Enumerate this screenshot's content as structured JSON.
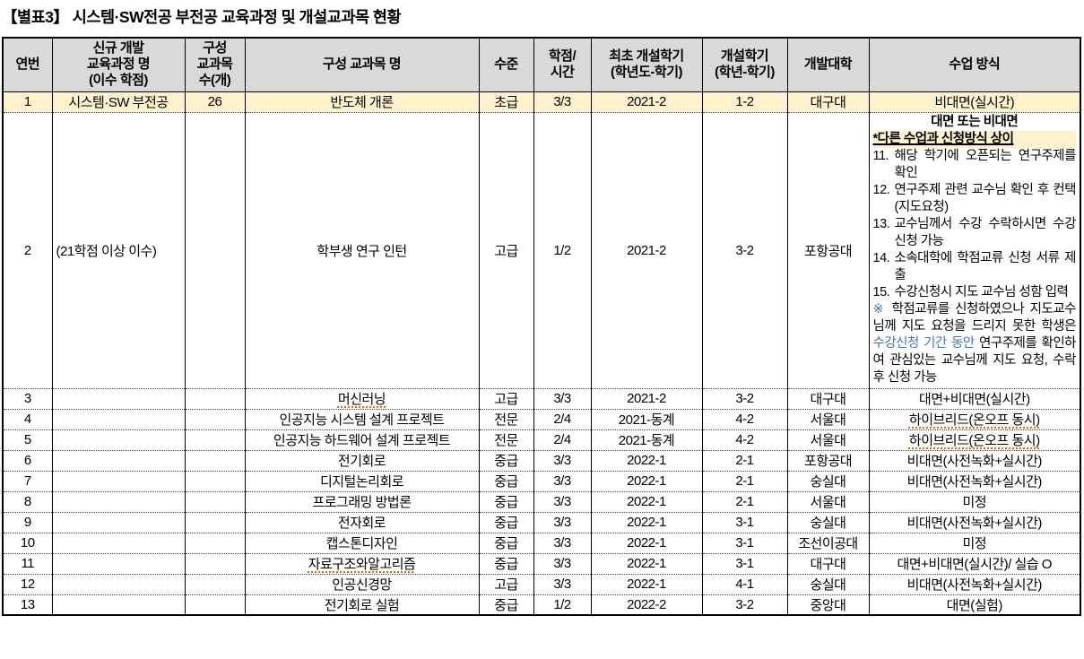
{
  "title": "【별표3】 시스템·SW전공 부전공 교육과정 및 개설교과목 현황",
  "colors": {
    "header_bg": "#d9d9d9",
    "highlight_bg": "#fdf2cc",
    "blue_text": "#4472c4",
    "squiggle": "#e36c0a"
  },
  "table": {
    "headers": {
      "no": "연번",
      "program": "신규 개발\n교육과정 명\n(이수 학점)",
      "count": "구성\n교과목\n수(개)",
      "course": "구성 교과목 명",
      "level": "수준",
      "credit": "학점/\n시간",
      "first_term": "최초 개설학기\n(학년도-학기)",
      "open_term": "개설학기\n(학년-학기)",
      "univ": "개발대학",
      "method": "수업 방식"
    },
    "rows": [
      {
        "no": "1",
        "program": "시스템·SW 부전공",
        "count": "26",
        "course": "반도체 개론",
        "level": "초급",
        "credit": "3/3",
        "first_term": "2021-2",
        "open_term": "1-2",
        "univ": "대구대",
        "method": "비대면(실시간)",
        "highlight": true
      },
      {
        "no": "2",
        "program": "(21학점 이상 이수)",
        "program_left": true,
        "count": "",
        "course": "학부생 연구 인턴",
        "level": "고급",
        "credit": "1/2",
        "first_term": "2021-2",
        "open_term": "3-2",
        "univ": "포항공대",
        "method": "",
        "method_special": true
      },
      {
        "no": "3",
        "program": "",
        "count": "",
        "course": "머신러닝",
        "level": "고급",
        "credit": "3/3",
        "first_term": "2021-2",
        "open_term": "3-2",
        "univ": "대구대",
        "method": "대면+비대면(실시간)",
        "squiggle": [
          "course"
        ]
      },
      {
        "no": "4",
        "program": "",
        "count": "",
        "course": "인공지능 시스템 설계 프로젝트",
        "level": "전문",
        "credit": "2/4",
        "first_term": "2021-동계",
        "open_term": "4-2",
        "univ": "서울대",
        "method": "하이브리드(온오프 동시)",
        "squiggle": [
          "method"
        ]
      },
      {
        "no": "5",
        "program": "",
        "count": "",
        "course": "인공지능 하드웨어 설계 프로젝트",
        "level": "전문",
        "credit": "2/4",
        "first_term": "2021-동계",
        "open_term": "4-2",
        "univ": "서울대",
        "method": "하이브리드(온오프 동시)",
        "squiggle": [
          "method"
        ]
      },
      {
        "no": "6",
        "program": "",
        "count": "",
        "course": "전기회로",
        "level": "중급",
        "credit": "3/3",
        "first_term": "2022-1",
        "open_term": "2-1",
        "univ": "포항공대",
        "method": "비대면(사전녹화+실시간)"
      },
      {
        "no": "7",
        "program": "",
        "count": "",
        "course": "디지털논리회로",
        "level": "중급",
        "credit": "3/3",
        "first_term": "2022-1",
        "open_term": "2-1",
        "univ": "숭실대",
        "method": "비대면(사전녹화+실시간)"
      },
      {
        "no": "8",
        "program": "",
        "count": "",
        "course": "프로그래밍 방법론",
        "level": "중급",
        "credit": "3/3",
        "first_term": "2022-1",
        "open_term": "2-1",
        "univ": "서울대",
        "method": "미정"
      },
      {
        "no": "9",
        "program": "",
        "count": "",
        "course": "전자회로",
        "level": "중급",
        "credit": "3/3",
        "first_term": "2022-1",
        "open_term": "3-1",
        "univ": "숭실대",
        "method": "비대면(사전녹화+실시간)"
      },
      {
        "no": "10",
        "program": "",
        "count": "",
        "course": "캡스톤디자인",
        "level": "중급",
        "credit": "3/3",
        "first_term": "2022-1",
        "open_term": "3-1",
        "univ": "조선이공대",
        "method": "미정"
      },
      {
        "no": "11",
        "program": "",
        "count": "",
        "course": "자료구조와알고리즘",
        "level": "중급",
        "credit": "3/3",
        "first_term": "2022-1",
        "open_term": "3-1",
        "univ": "대구대",
        "method": "대면+비대면(실시간)/ 실습 O",
        "squiggle": [
          "course"
        ]
      },
      {
        "no": "12",
        "program": "",
        "count": "",
        "course": "인공신경망",
        "level": "고급",
        "credit": "3/3",
        "first_term": "2022-1",
        "open_term": "4-1",
        "univ": "숭실대",
        "method": "비대면(사전녹화+실시간)"
      },
      {
        "no": "13",
        "program": "",
        "count": "",
        "course": "전기회로 실험",
        "level": "중급",
        "credit": "1/2",
        "first_term": "2022-2",
        "open_term": "3-2",
        "univ": "중앙대",
        "method": "대면(실험)"
      }
    ],
    "row2_method": {
      "line1": "대면 또는 비대면",
      "line2": "*다른 수업과 신청방식 상이",
      "items": [
        {
          "num": "11.",
          "text": "해당 학기에 오픈되는 연구주제를 확인"
        },
        {
          "num": "12.",
          "text": "연구주제 관련 교수님 확인 후 컨택(지도요청)"
        },
        {
          "num": "13.",
          "text": "교수님께서 수강 수락하시면 수강신청 가능"
        },
        {
          "num": "14.",
          "text": "소속대학에 학점교류 신청 서류 제출"
        },
        {
          "num": "15.",
          "text": "수강신청시 지도 교수님 성함 입력"
        }
      ],
      "note_segments": [
        {
          "text": "※",
          "blue": true
        },
        {
          "text": " 학점교류를 신청하였으나 지도교수님께 지도 요청을 드리지 못한 학생은 ",
          "blue": false
        },
        {
          "text": "수강신청 기간 동안",
          "blue": true
        },
        {
          "text": " 연구주제를 확인하여 관심있는 교수님께 지도 요청, 수락 후 신청 가능",
          "blue": false
        }
      ]
    }
  }
}
